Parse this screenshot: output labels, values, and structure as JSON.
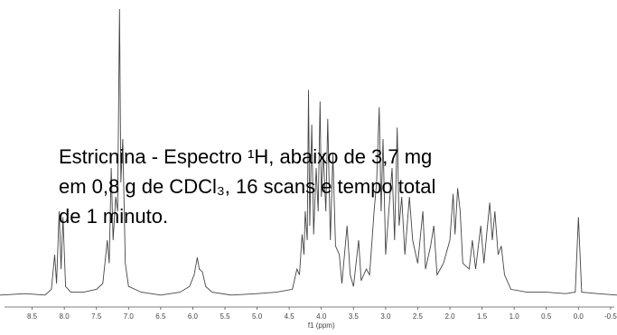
{
  "chart_data": {
    "type": "line",
    "annotation": [
      "Estricnina - Espectro ¹H, abaixo de 3,7 mg",
      "em 0,8 g de CDCl₃, 16 scans e tempo total",
      "de 1 minuto."
    ],
    "x_label": "f1 (ppm)",
    "xlim": [
      9.0,
      -0.6
    ],
    "ylim": [
      0,
      100
    ],
    "xticks": [
      8.5,
      {
        "value": 8,
        "label": "8.0"
      },
      7.5,
      {
        "value": 7,
        "label": "7.0"
      },
      6.5,
      {
        "value": 6,
        "label": "6.0"
      },
      5.5,
      {
        "value": 5,
        "label": "5.0"
      },
      4.5,
      {
        "value": 4,
        "label": "4.0"
      },
      3.5,
      {
        "value": 3,
        "label": "3.0"
      },
      2.5,
      {
        "value": 2,
        "label": "2.0"
      },
      1.5,
      {
        "value": 1,
        "label": "1.0"
      },
      0.5,
      {
        "value": 0,
        "label": "0.0"
      },
      -0.5
    ],
    "color": "#444444",
    "x": [
      9.0,
      8.6,
      8.3,
      8.2,
      8.15,
      8.12,
      8.08,
      8.05,
      8.02,
      7.98,
      7.9,
      7.7,
      7.5,
      7.4,
      7.33,
      7.3,
      7.27,
      7.24,
      7.2,
      7.17,
      7.14,
      7.12,
      7.09,
      7.05,
      7.0,
      6.8,
      6.5,
      6.2,
      6.05,
      5.98,
      5.93,
      5.9,
      5.85,
      5.8,
      5.7,
      5.4,
      5.0,
      4.7,
      4.45,
      4.38,
      4.34,
      4.3,
      4.27,
      4.25,
      4.22,
      4.2,
      4.18,
      4.15,
      4.12,
      4.08,
      4.05,
      4.02,
      4.0,
      3.97,
      3.93,
      3.9,
      3.86,
      3.82,
      3.78,
      3.72,
      3.68,
      3.6,
      3.55,
      3.5,
      3.42,
      3.38,
      3.3,
      3.25,
      3.18,
      3.14,
      3.1,
      3.07,
      3.04,
      3.0,
      2.95,
      2.9,
      2.86,
      2.82,
      2.79,
      2.75,
      2.7,
      2.63,
      2.58,
      2.5,
      2.42,
      2.38,
      2.3,
      2.25,
      2.2,
      2.1,
      2.0,
      1.95,
      1.92,
      1.88,
      1.84,
      1.8,
      1.7,
      1.65,
      1.6,
      1.52,
      1.47,
      1.38,
      1.34,
      1.3,
      1.25,
      1.2,
      1.15,
      1.05,
      0.8,
      0.5,
      0.2,
      0.05,
      0.0,
      -0.05,
      -0.3,
      -0.6
    ],
    "values": [
      1,
      1.5,
      1,
      3,
      15,
      5,
      30,
      10,
      28,
      4,
      2,
      2,
      3,
      5,
      20,
      12,
      45,
      20,
      35,
      30,
      100,
      40,
      55,
      12,
      4,
      2,
      1,
      2,
      4,
      8,
      14,
      10,
      9,
      4,
      2,
      1,
      1.5,
      2,
      3,
      10,
      8,
      22,
      15,
      30,
      20,
      72,
      25,
      60,
      22,
      45,
      30,
      68,
      35,
      50,
      30,
      62,
      20,
      50,
      18,
      15,
      5,
      25,
      8,
      4,
      20,
      6,
      10,
      8,
      30,
      40,
      66,
      30,
      55,
      15,
      30,
      45,
      20,
      59,
      25,
      35,
      15,
      35,
      20,
      12,
      30,
      10,
      18,
      25,
      8,
      12,
      20,
      36,
      22,
      38,
      30,
      12,
      10,
      20,
      10,
      25,
      12,
      33,
      20,
      30,
      15,
      18,
      8,
      3,
      2,
      2,
      1.5,
      2,
      28,
      2,
      1.5,
      1
    ]
  }
}
